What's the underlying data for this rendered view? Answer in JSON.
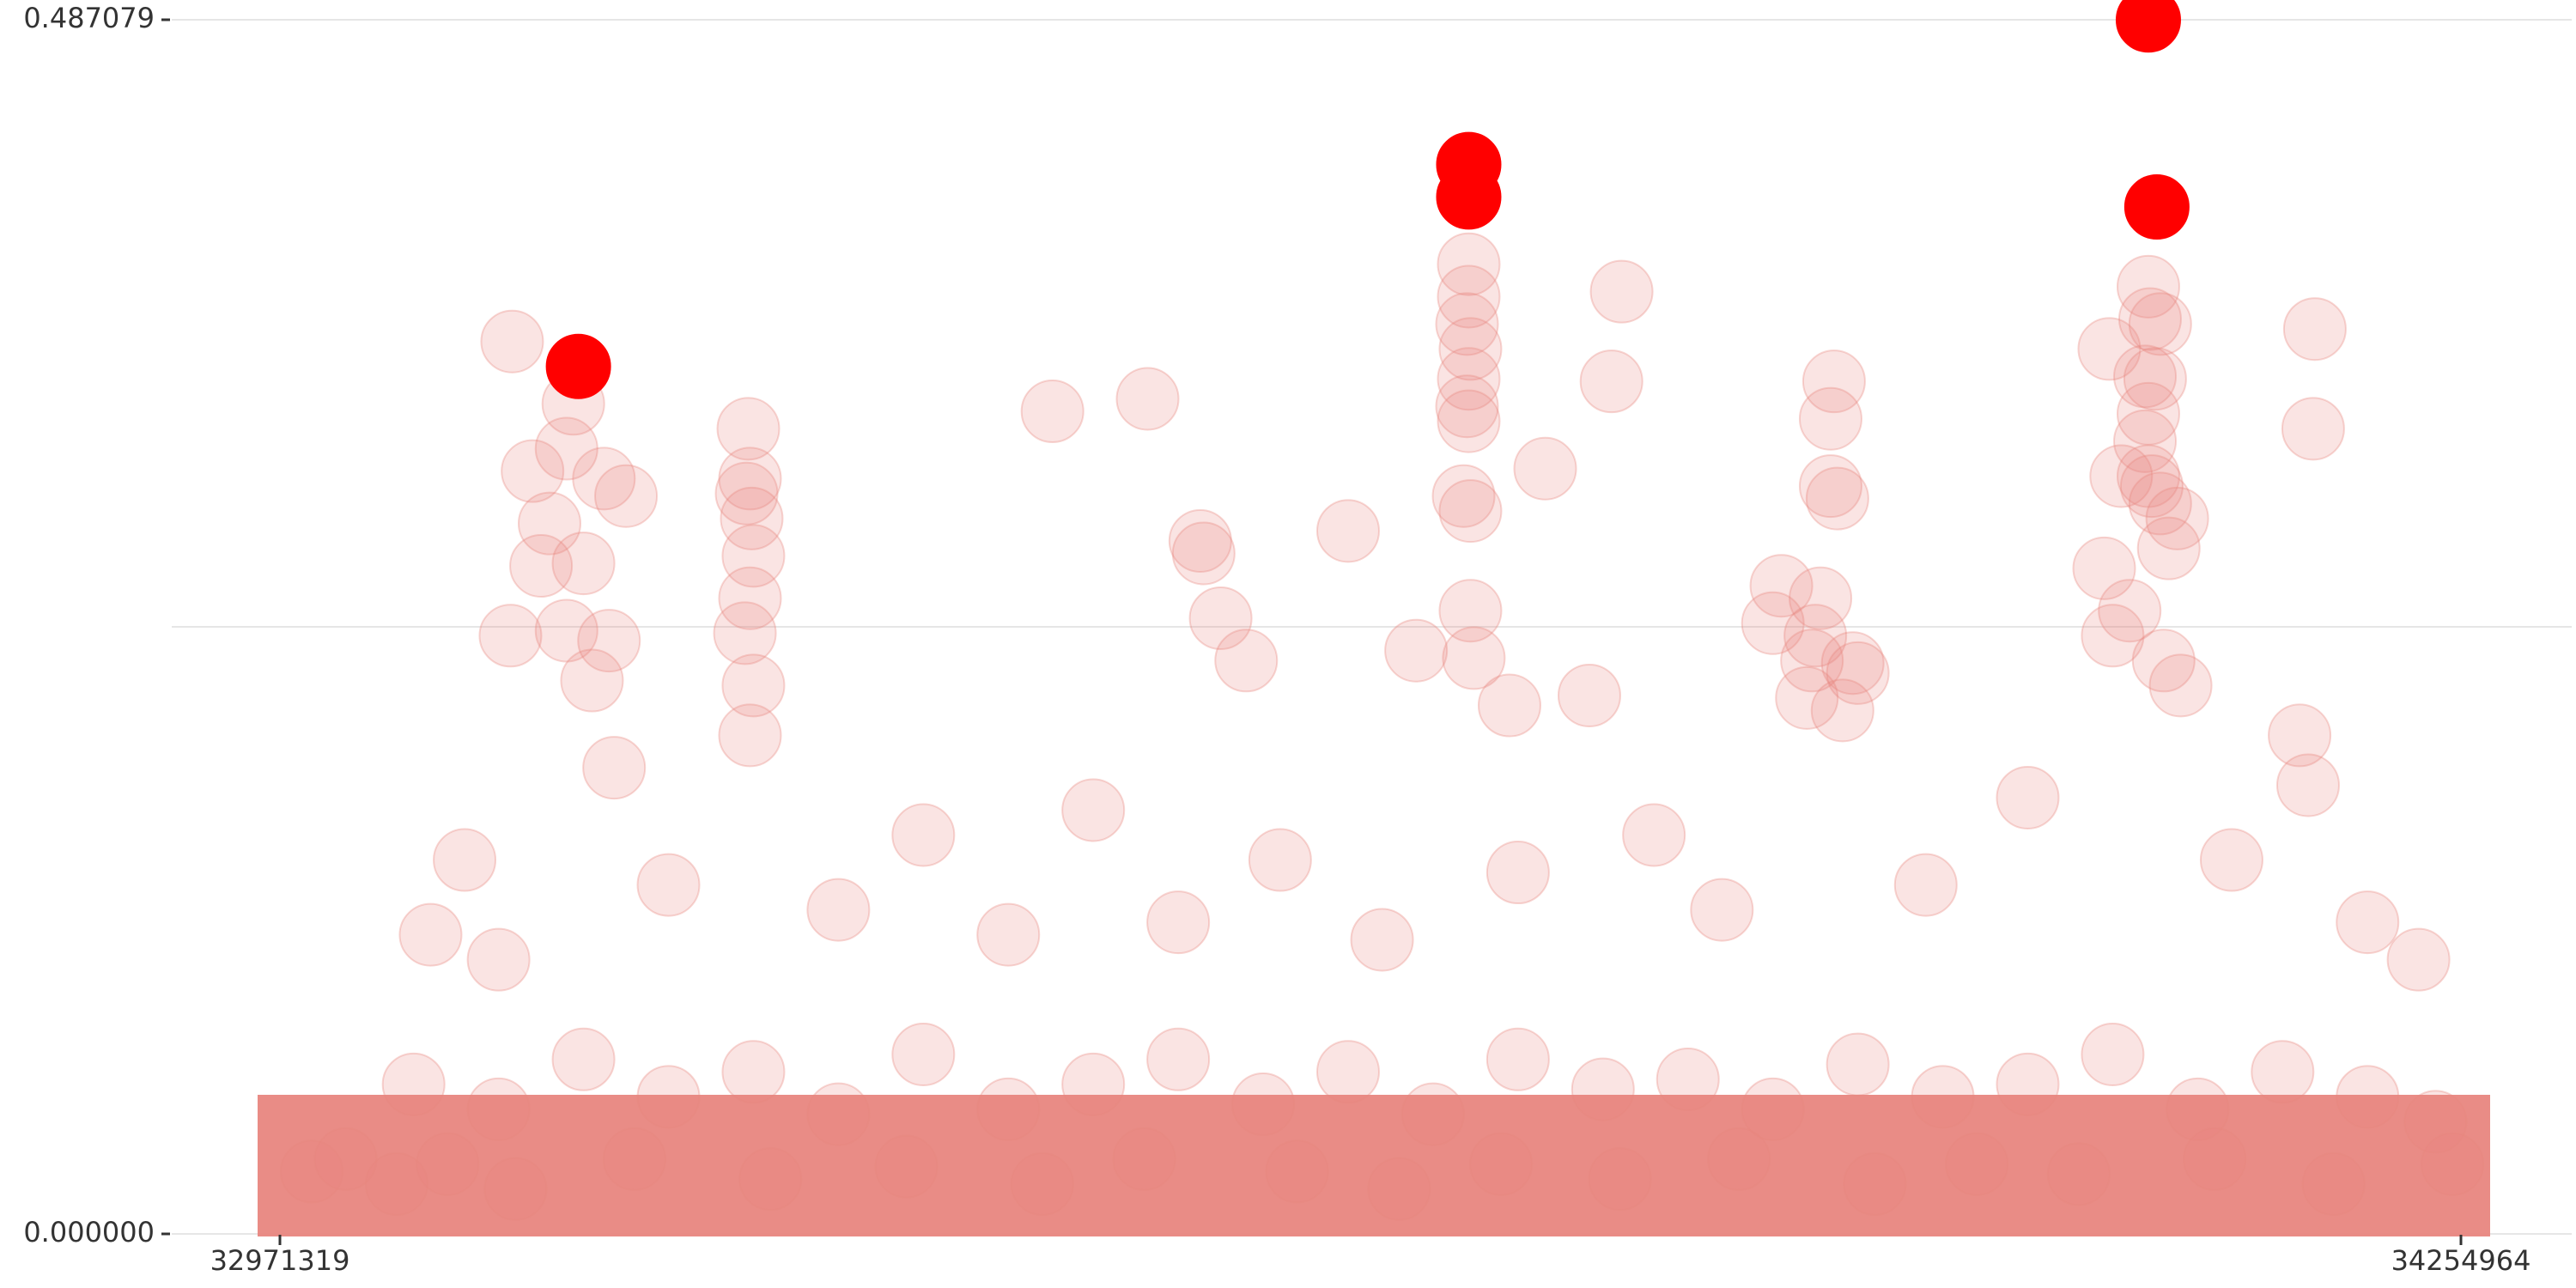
{
  "colors": {
    "background": "#ffffff",
    "gridline": "#e6e6e6",
    "axis": "#333333",
    "point_fill": "#e8867f",
    "point_highlight": "#ff0000"
  },
  "chart_data": {
    "type": "scatter",
    "title": "",
    "xlabel": "",
    "ylabel": "",
    "xlim": [
      32971319,
      34254964
    ],
    "ylim": [
      0.0,
      0.487079
    ],
    "x_tick_labels": [
      "32971319",
      "34254964"
    ],
    "y_tick_labels": [
      "0.000000",
      "0.487079"
    ],
    "grid": "horizontal",
    "series": [
      {
        "style": "semi-transparent",
        "points": [
          [
            33144000,
            0.333
          ],
          [
            33120000,
            0.306
          ],
          [
            33125000,
            0.268
          ],
          [
            33130000,
            0.285
          ],
          [
            33140000,
            0.315
          ],
          [
            33108000,
            0.358
          ],
          [
            33107000,
            0.24
          ],
          [
            33150000,
            0.269
          ],
          [
            33162000,
            0.303
          ],
          [
            33175000,
            0.296
          ],
          [
            33165000,
            0.238
          ],
          [
            33168000,
            0.187
          ],
          [
            33140000,
            0.242
          ],
          [
            33155000,
            0.222
          ],
          [
            33247000,
            0.323
          ],
          [
            33248000,
            0.303
          ],
          [
            33246000,
            0.297
          ],
          [
            33249000,
            0.287
          ],
          [
            33250000,
            0.272
          ],
          [
            33248000,
            0.255
          ],
          [
            33245000,
            0.241
          ],
          [
            33250000,
            0.22
          ],
          [
            33248000,
            0.2
          ],
          [
            33426000,
            0.33
          ],
          [
            33482000,
            0.335
          ],
          [
            33513000,
            0.278
          ],
          [
            33515000,
            0.273
          ],
          [
            33540000,
            0.23
          ],
          [
            33525000,
            0.247
          ],
          [
            33640000,
            0.234
          ],
          [
            33600000,
            0.282
          ],
          [
            33671000,
            0.389
          ],
          [
            33671000,
            0.376
          ],
          [
            33670000,
            0.365
          ],
          [
            33672000,
            0.355
          ],
          [
            33671000,
            0.343
          ],
          [
            33670000,
            0.332
          ],
          [
            33671000,
            0.326
          ],
          [
            33668000,
            0.296
          ],
          [
            33672000,
            0.29
          ],
          [
            33672000,
            0.25
          ],
          [
            33674000,
            0.231
          ],
          [
            33716000,
            0.307
          ],
          [
            33761000,
            0.378
          ],
          [
            33755000,
            0.342
          ],
          [
            33695000,
            0.212
          ],
          [
            33742000,
            0.216
          ],
          [
            33886000,
            0.342
          ],
          [
            33884000,
            0.327
          ],
          [
            33884000,
            0.3
          ],
          [
            33888000,
            0.295
          ],
          [
            33878000,
            0.255
          ],
          [
            33875000,
            0.24
          ],
          [
            33897000,
            0.229
          ],
          [
            33900000,
            0.225
          ],
          [
            33855000,
            0.26
          ],
          [
            33850000,
            0.245
          ],
          [
            33873000,
            0.23
          ],
          [
            33870000,
            0.215
          ],
          [
            33891000,
            0.21
          ],
          [
            34071000,
            0.38
          ],
          [
            34072000,
            0.367
          ],
          [
            34069000,
            0.344
          ],
          [
            34078000,
            0.365
          ],
          [
            34048000,
            0.355
          ],
          [
            34075000,
            0.343
          ],
          [
            34071000,
            0.329
          ],
          [
            34069000,
            0.318
          ],
          [
            34071000,
            0.304
          ],
          [
            34055000,
            0.304
          ],
          [
            34073000,
            0.3
          ],
          [
            34078000,
            0.293
          ],
          [
            34088000,
            0.287
          ],
          [
            34083000,
            0.275
          ],
          [
            34045000,
            0.267
          ],
          [
            34060000,
            0.25
          ],
          [
            34050000,
            0.24
          ],
          [
            34080000,
            0.23
          ],
          [
            34090000,
            0.22
          ],
          [
            34169000,
            0.363
          ],
          [
            34168000,
            0.323
          ],
          [
            34160000,
            0.2
          ],
          [
            34165000,
            0.18
          ],
          [
            33060000,
            0.12
          ],
          [
            33080000,
            0.15
          ],
          [
            33100000,
            0.11
          ],
          [
            33200000,
            0.14
          ],
          [
            33300000,
            0.13
          ],
          [
            33350000,
            0.16
          ],
          [
            33400000,
            0.12
          ],
          [
            33450000,
            0.17
          ],
          [
            33500000,
            0.125
          ],
          [
            33560000,
            0.15
          ],
          [
            33620000,
            0.118
          ],
          [
            33700000,
            0.145
          ],
          [
            33780000,
            0.16
          ],
          [
            33820000,
            0.13
          ],
          [
            33940000,
            0.14
          ],
          [
            34000000,
            0.175
          ],
          [
            34120000,
            0.15
          ],
          [
            34200000,
            0.125
          ],
          [
            34230000,
            0.11
          ],
          [
            33050000,
            0.06
          ],
          [
            33100000,
            0.05
          ],
          [
            33150000,
            0.07
          ],
          [
            33200000,
            0.055
          ],
          [
            33250000,
            0.065
          ],
          [
            33300000,
            0.048
          ],
          [
            33350000,
            0.072
          ],
          [
            33400000,
            0.05
          ],
          [
            33450000,
            0.06
          ],
          [
            33500000,
            0.07
          ],
          [
            33550000,
            0.052
          ],
          [
            33600000,
            0.065
          ],
          [
            33650000,
            0.048
          ],
          [
            33700000,
            0.07
          ],
          [
            33750000,
            0.058
          ],
          [
            33800000,
            0.062
          ],
          [
            33850000,
            0.05
          ],
          [
            33900000,
            0.068
          ],
          [
            33950000,
            0.055
          ],
          [
            34000000,
            0.06
          ],
          [
            34050000,
            0.072
          ],
          [
            34100000,
            0.05
          ],
          [
            34150000,
            0.065
          ],
          [
            34200000,
            0.055
          ],
          [
            34240000,
            0.045
          ],
          [
            32990000,
            0.025
          ],
          [
            33010000,
            0.03
          ],
          [
            33040000,
            0.02
          ],
          [
            33070000,
            0.028
          ],
          [
            33110000,
            0.018
          ],
          [
            33180000,
            0.03
          ],
          [
            33260000,
            0.022
          ],
          [
            33340000,
            0.027
          ],
          [
            33420000,
            0.02
          ],
          [
            33480000,
            0.03
          ],
          [
            33570000,
            0.025
          ],
          [
            33630000,
            0.018
          ],
          [
            33690000,
            0.028
          ],
          [
            33760000,
            0.022
          ],
          [
            33830000,
            0.03
          ],
          [
            33910000,
            0.02
          ],
          [
            33970000,
            0.028
          ],
          [
            34030000,
            0.024
          ],
          [
            34110000,
            0.03
          ],
          [
            34180000,
            0.02
          ],
          [
            34250000,
            0.028
          ]
        ]
      },
      {
        "style": "highlighted",
        "points": [
          [
            33147000,
            0.348
          ],
          [
            33671000,
            0.429
          ],
          [
            33671000,
            0.416
          ],
          [
            34076000,
            0.412
          ],
          [
            34071000,
            0.487
          ]
        ]
      }
    ]
  }
}
